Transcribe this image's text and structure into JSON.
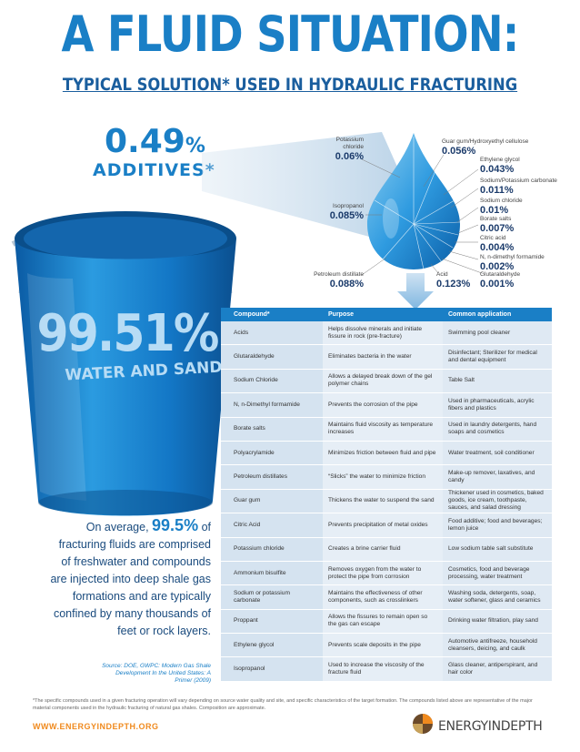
{
  "header": {
    "title": "A FLUID SITUATION:",
    "subtitle": "TYPICAL SOLUTION* USED IN HYDRAULIC FRACTURING"
  },
  "additives": {
    "value": "0.49",
    "unit": "%",
    "label": "ADDITIVES*"
  },
  "bucket": {
    "value": "99.51%",
    "label": "WATER AND SAND"
  },
  "composition": [
    {
      "name": "Potassium chloride",
      "value": "0.06%"
    },
    {
      "name": "Guar gum/Hydroxyethyl cellulose",
      "value": "0.056%"
    },
    {
      "name": "Ethylene glycol",
      "value": "0.043%"
    },
    {
      "name": "Sodium/Potassium carbonate",
      "value": "0.011%"
    },
    {
      "name": "Sodium chloride",
      "value": "0.01%"
    },
    {
      "name": "Borate salts",
      "value": "0.007%"
    },
    {
      "name": "Citric acid",
      "value": "0.004%"
    },
    {
      "name": "N, n-dimethyl formamide",
      "value": "0.002%"
    },
    {
      "name": "Glutaraldehyde",
      "value": "0.001%"
    },
    {
      "name": "Acid",
      "value": "0.123%"
    },
    {
      "name": "Petroleum distillate",
      "value": "0.088%"
    },
    {
      "name": "Isopropanol",
      "value": "0.085%"
    }
  ],
  "table": {
    "headers": [
      "Compound*",
      "Purpose",
      "Common application"
    ],
    "rows": [
      [
        "Acids",
        "Helps dissolve minerals and initiate fissure in rock (pre-fracture)",
        "Swimming pool cleaner"
      ],
      [
        "Glutaraldehyde",
        "Eliminates bacteria in the water",
        "Disinfectant; Sterilizer for medical and dental equipment"
      ],
      [
        "Sodium Chloride",
        "Allows a delayed break down of the gel polymer chains",
        "Table Salt"
      ],
      [
        "N, n-Dimethyl formamide",
        "Prevents the corrosion of the pipe",
        "Used in pharmaceuticals, acrylic fibers and plastics"
      ],
      [
        "Borate salts",
        "Maintains fluid viscosity as temperature increases",
        "Used in laundry detergents, hand soaps and cosmetics"
      ],
      [
        "Polyacrylamide",
        "Minimizes friction between fluid and pipe",
        "Water treatment, soil conditioner"
      ],
      [
        "Petroleum distillates",
        "“Slicks” the water to minimize friction",
        "Make-up remover, laxatives, and candy"
      ],
      [
        "Guar gum",
        "Thickens the water to suspend the sand",
        "Thickener used in cosmetics, baked goods, ice cream, toothpaste, sauces, and salad dressing"
      ],
      [
        "Citric Acid",
        "Prevents precipitation of metal oxides",
        "Food additive; food and beverages; lemon juice"
      ],
      [
        "Potassium chloride",
        "Creates a brine carrier fluid",
        "Low sodium table salt substitute"
      ],
      [
        "Ammonium bisulfite",
        "Removes oxygen from the water to protect the pipe from corrosion",
        "Cosmetics, food and beverage processing, water treatment"
      ],
      [
        "Sodium or potassium carbonate",
        "Maintains the effectiveness of other components, such as crosslinkers",
        "Washing soda, detergents, soap, water softener, glass and ceramics"
      ],
      [
        "Proppant",
        "Allows the fissures to remain open so the gas can escape",
        "Drinking water filtration, play sand"
      ],
      [
        "Ethylene glycol",
        "Prevents scale deposits in the pipe",
        "Automotive antifreeze, household cleansers, deicing, and caulk"
      ],
      [
        "Isopropanol",
        "Used to increase the viscosity of the fracture fluid",
        "Glass cleaner, antiperspirant, and hair color"
      ]
    ]
  },
  "average": {
    "prefix": "On average,",
    "highlight": "99.5%",
    "body": "of fracturing fluids are comprised of freshwater and compounds are injected into deep shale gas formations and are typically confined by many thousands of feet or rock layers."
  },
  "source": "Source: DOE, GWPC: Modern Gas Shale Development In the United States: A Primer (2009)",
  "footnote": "*The specific compounds used in a given fracturing operation will vary depending on source water quality and site, and specific characteristics of the target formation. The compounds listed above are representative of the major material components used in the hydraulic fracturing of natural gas shales. Composition are approximate.",
  "footer": {
    "url": "WWW.ENERGYINDEPTH.ORG",
    "logo": "ENERGYINDEPTH"
  },
  "colors": {
    "brand_blue": "#1a7fc6",
    "dark_blue": "#1b3b6b",
    "orange": "#f08a1e"
  }
}
